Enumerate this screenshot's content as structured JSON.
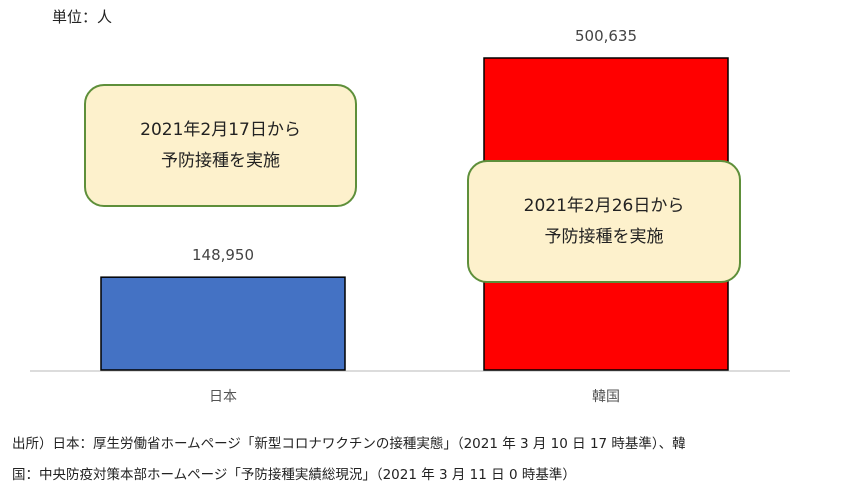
{
  "unit_label": "単位：人",
  "chart_data": {
    "type": "bar",
    "categories": [
      "日本",
      "韓国"
    ],
    "values": [
      148950,
      500635
    ],
    "value_labels": [
      "148,950",
      "500,635"
    ],
    "colors": [
      "#4472c4",
      "#ff0000"
    ],
    "ylim": [
      0,
      500635
    ],
    "grid": false,
    "annotations": [
      {
        "category": "日本",
        "lines": [
          "2021年2月17日から",
          "予防接種を実施"
        ]
      },
      {
        "category": "韓国",
        "lines": [
          "2021年2月26日から",
          "予防接種を実施"
        ]
      }
    ]
  },
  "source": {
    "line1": "出所）日本：厚生労働省ホームページ「新型コロナワクチンの接種実態」（2021 年 3 月 10 日 17 時基準）、韓",
    "line2": "国：中央防疫対策本部ホームページ「予防接種実績総現況」（2021 年 3 月 11 日 0 時基準）"
  }
}
